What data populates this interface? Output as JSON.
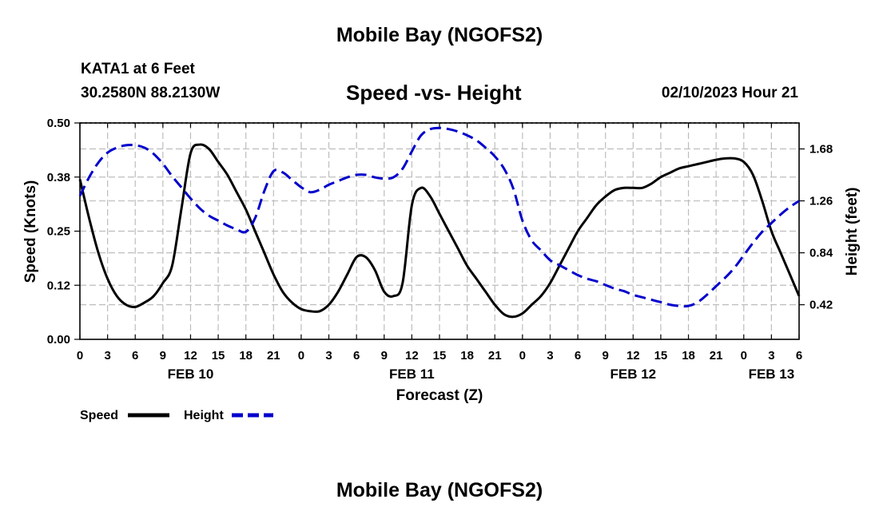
{
  "header": {
    "title": "Mobile Bay (NGOFS2)",
    "station": "KATA1 at 6 Feet",
    "coords": "30.2580N  88.2130W",
    "subtitle": "Speed -vs- Height",
    "timestamp": "02/10/2023 Hour 21"
  },
  "footer": {
    "title": "Mobile Bay (NGOFS2)"
  },
  "colors": {
    "speed": "#000000",
    "height": "#0000cc",
    "grid": "#bdbdbd"
  },
  "chart_data": {
    "type": "line",
    "title": "Speed -vs- Height",
    "xlabel": "Forecast (Z)",
    "ylabel": "Speed (Knots)",
    "ylabel_right": "Height (feet)",
    "xlim": [
      0,
      78
    ],
    "ylim": [
      0,
      0.5
    ],
    "ylim_right": [
      0.14,
      1.89
    ],
    "grid": true,
    "legend_position": "bottom-left",
    "x_tick_labels": [
      "0",
      "3",
      "6",
      "9",
      "12",
      "15",
      "18",
      "21",
      "0",
      "3",
      "6",
      "9",
      "12",
      "15",
      "18",
      "21",
      "0",
      "3",
      "6",
      "9",
      "12",
      "15",
      "18",
      "21",
      "0",
      "3",
      "6"
    ],
    "y_tick_labels_left": [
      "0.00",
      "0.12",
      "0.25",
      "0.38",
      "0.50"
    ],
    "y_tick_values_left": [
      0,
      0.125,
      0.25,
      0.375,
      0.5
    ],
    "y_tick_labels_right": [
      "0.42",
      "0.84",
      "1.26",
      "1.68"
    ],
    "y_tick_values_right": [
      0.42,
      0.84,
      1.26,
      1.68
    ],
    "date_labels": [
      {
        "label": "FEB 10",
        "x": 12
      },
      {
        "label": "FEB 11",
        "x": 36
      },
      {
        "label": "FEB 12",
        "x": 60
      },
      {
        "label": "FEB 13",
        "x": 75
      }
    ],
    "series": [
      {
        "name": "Speed",
        "axis": "left",
        "style": "solid",
        "color": "#000000",
        "x": [
          0,
          1,
          2,
          3,
          4,
          5,
          6,
          7,
          8,
          9,
          10,
          11,
          12,
          13,
          14,
          15,
          16,
          17,
          18,
          19,
          20,
          21,
          22,
          23,
          24,
          25,
          26,
          27,
          28,
          29,
          30,
          31,
          32,
          33,
          34,
          35,
          36,
          37,
          38,
          39,
          40,
          41,
          42,
          43,
          44,
          45,
          46,
          47,
          48,
          49,
          50,
          51,
          52,
          53,
          54,
          55,
          56,
          57,
          58,
          59,
          60,
          61,
          62,
          63,
          64,
          65,
          66,
          67,
          68,
          69,
          70,
          71,
          72,
          73,
          74,
          75,
          76,
          77,
          78
        ],
        "values": [
          0.37,
          0.28,
          0.2,
          0.14,
          0.1,
          0.08,
          0.075,
          0.085,
          0.1,
          0.13,
          0.17,
          0.3,
          0.43,
          0.45,
          0.44,
          0.41,
          0.38,
          0.34,
          0.3,
          0.25,
          0.2,
          0.15,
          0.11,
          0.085,
          0.07,
          0.065,
          0.065,
          0.08,
          0.11,
          0.15,
          0.19,
          0.19,
          0.16,
          0.11,
          0.1,
          0.13,
          0.31,
          0.35,
          0.33,
          0.29,
          0.25,
          0.21,
          0.17,
          0.14,
          0.11,
          0.08,
          0.058,
          0.052,
          0.06,
          0.08,
          0.1,
          0.13,
          0.17,
          0.21,
          0.25,
          0.28,
          0.31,
          0.33,
          0.345,
          0.35,
          0.35,
          0.35,
          0.36,
          0.375,
          0.385,
          0.395,
          0.4,
          0.405,
          0.41,
          0.415,
          0.418,
          0.418,
          0.41,
          0.38,
          0.32,
          0.25,
          0.2,
          0.15,
          0.1
        ]
      },
      {
        "name": "Height",
        "axis": "right",
        "style": "dashed",
        "color": "#0000cc",
        "x": [
          0,
          1,
          2,
          3,
          4,
          5,
          6,
          7,
          8,
          9,
          10,
          11,
          12,
          13,
          14,
          15,
          16,
          17,
          18,
          19,
          20,
          21,
          22,
          23,
          24,
          25,
          26,
          27,
          28,
          29,
          30,
          31,
          32,
          33,
          34,
          35,
          36,
          37,
          38,
          39,
          40,
          41,
          42,
          43,
          44,
          45,
          46,
          47,
          48,
          49,
          50,
          51,
          52,
          53,
          54,
          55,
          56,
          57,
          58,
          59,
          60,
          61,
          62,
          63,
          64,
          65,
          66,
          67,
          68,
          69,
          70,
          71,
          72,
          73,
          74,
          75,
          76,
          77,
          78
        ],
        "values": [
          1.3,
          1.45,
          1.57,
          1.65,
          1.69,
          1.71,
          1.71,
          1.69,
          1.64,
          1.56,
          1.46,
          1.37,
          1.28,
          1.2,
          1.14,
          1.1,
          1.06,
          1.03,
          1.01,
          1.12,
          1.34,
          1.5,
          1.49,
          1.43,
          1.37,
          1.33,
          1.35,
          1.39,
          1.42,
          1.45,
          1.47,
          1.47,
          1.45,
          1.44,
          1.45,
          1.52,
          1.66,
          1.79,
          1.84,
          1.85,
          1.84,
          1.82,
          1.79,
          1.75,
          1.69,
          1.62,
          1.52,
          1.36,
          1.1,
          0.94,
          0.86,
          0.78,
          0.74,
          0.7,
          0.66,
          0.63,
          0.61,
          0.58,
          0.55,
          0.53,
          0.5,
          0.48,
          0.46,
          0.44,
          0.42,
          0.41,
          0.41,
          0.44,
          0.5,
          0.57,
          0.64,
          0.72,
          0.82,
          0.92,
          1.01,
          1.08,
          1.15,
          1.21,
          1.26
        ]
      }
    ]
  }
}
